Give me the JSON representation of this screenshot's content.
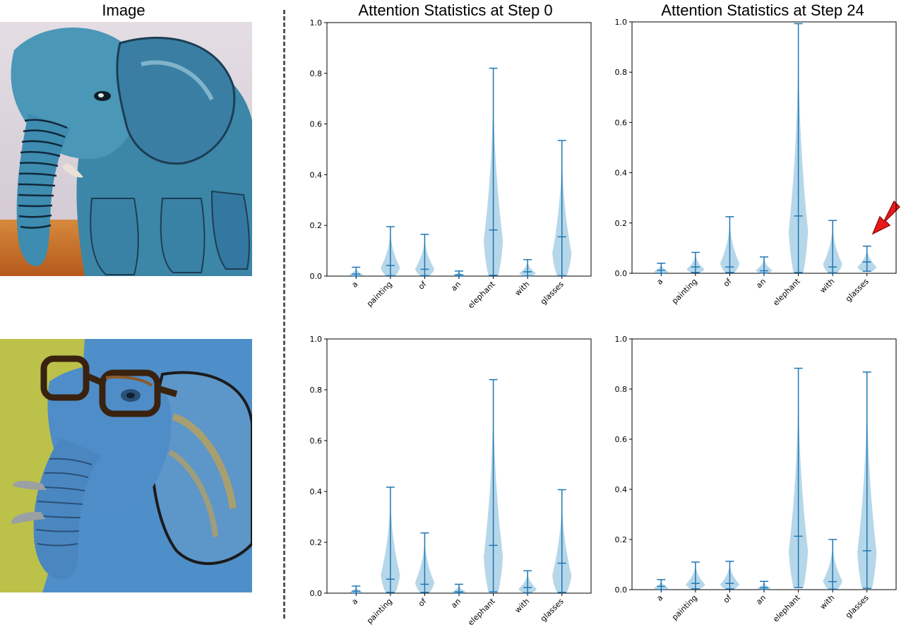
{
  "headers": {
    "image": "Image",
    "step0": "Attention Statistics at Step 0",
    "step24": "Attention Statistics at Step 24"
  },
  "colors": {
    "violin_fill": "#9ecae1",
    "violin_line": "#1f77b4",
    "arrow": "#e8191a"
  },
  "photos": {
    "top": "blue-elephant-painting",
    "bottom": "blue-elephant-with-glasses-painting"
  },
  "chart_data": [
    {
      "type": "violin",
      "title": "",
      "categories": [
        "a",
        "painting",
        "of",
        "an",
        "elephant",
        "with",
        "glasses"
      ],
      "ylim": [
        0,
        1.0
      ],
      "yticks": [
        "0.0",
        "0.2",
        "0.4",
        "0.6",
        "0.8",
        "1.0"
      ],
      "max": [
        0.035,
        0.195,
        0.165,
        0.02,
        0.82,
        0.065,
        0.535
      ],
      "median": [
        0.008,
        0.042,
        0.027,
        0.005,
        0.182,
        0.017,
        0.155
      ],
      "min": [
        0.0,
        0.002,
        0.002,
        0.0,
        0.003,
        0.001,
        0.002
      ]
    },
    {
      "type": "violin",
      "title": "",
      "categories": [
        "a",
        "painting",
        "of",
        "an",
        "elephant",
        "with",
        "glasses"
      ],
      "ylim": [
        0,
        1.0
      ],
      "yticks": [
        "0.0",
        "0.2",
        "0.4",
        "0.6",
        "0.8",
        "1.0"
      ],
      "max": [
        0.04,
        0.083,
        0.225,
        0.065,
        0.993,
        0.21,
        0.108
      ],
      "median": [
        0.012,
        0.025,
        0.025,
        0.01,
        0.228,
        0.025,
        0.045
      ],
      "min": [
        0.0,
        0.003,
        0.003,
        0.001,
        0.003,
        0.002,
        0.008
      ]
    },
    {
      "type": "violin",
      "title": "",
      "categories": [
        "a",
        "painting",
        "of",
        "an",
        "elephant",
        "with",
        "glasses"
      ],
      "ylim": [
        0,
        1.0
      ],
      "yticks": [
        "0.0",
        "0.2",
        "0.4",
        "0.6",
        "0.8",
        "1.0"
      ],
      "max": [
        0.028,
        0.417,
        0.237,
        0.035,
        0.84,
        0.088,
        0.407
      ],
      "median": [
        0.008,
        0.055,
        0.035,
        0.005,
        0.188,
        0.022,
        0.118
      ],
      "min": [
        0.0,
        0.003,
        0.003,
        0.0,
        0.005,
        0.002,
        0.003
      ]
    },
    {
      "type": "violin",
      "title": "",
      "categories": [
        "a",
        "painting",
        "of",
        "an",
        "elephant",
        "with",
        "glasses"
      ],
      "ylim": [
        0,
        1.0
      ],
      "yticks": [
        "0.0",
        "0.2",
        "0.4",
        "0.6",
        "0.8",
        "1.0"
      ],
      "max": [
        0.04,
        0.11,
        0.113,
        0.033,
        0.883,
        0.2,
        0.868
      ],
      "median": [
        0.013,
        0.025,
        0.025,
        0.008,
        0.213,
        0.032,
        0.155
      ],
      "min": [
        0.0,
        0.003,
        0.003,
        0.001,
        0.008,
        0.002,
        0.005
      ]
    }
  ]
}
